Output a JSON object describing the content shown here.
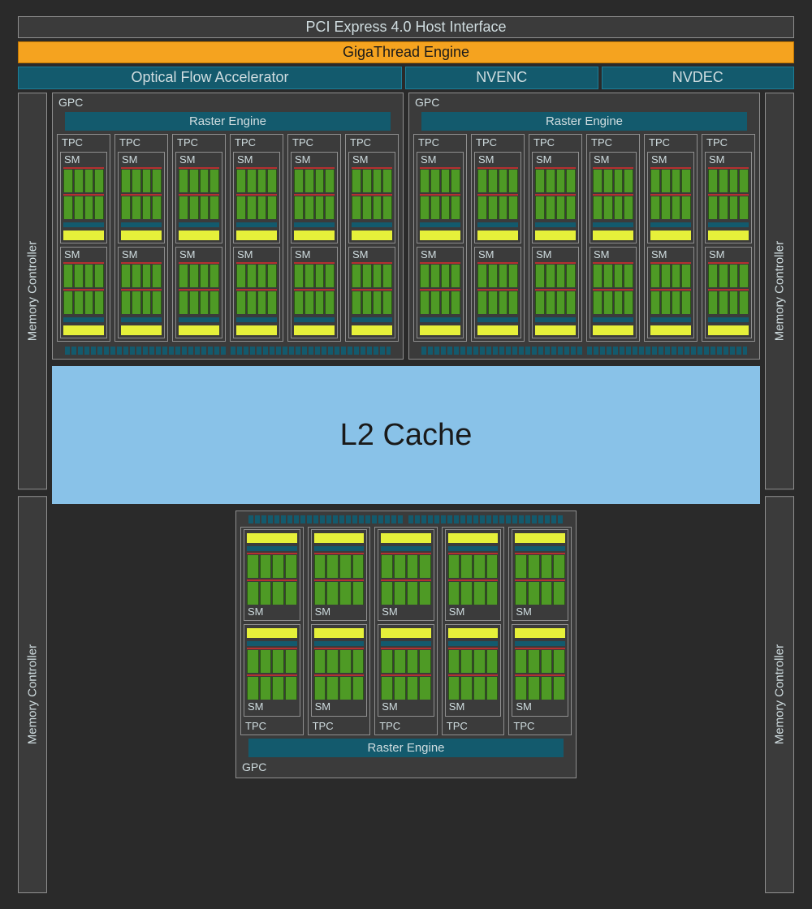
{
  "colors": {
    "page_bg": "#000000",
    "chip_bg": "#2a2a2a",
    "block_bg": "#3b3b3b",
    "border": "#8f8f8f",
    "text": "#d0dde0",
    "text_dark": "#1a1a1a",
    "teal": "#135a6d",
    "teal_border": "#1d7f99",
    "orange": "#f5a31f",
    "orange_border": "#c07500",
    "l2_blue": "#89c2e8",
    "sm_green": "#4e9a25",
    "sm_red": "#b53030",
    "sm_yellow": "#e6f03a"
  },
  "typography": {
    "top_bar_fontsize": 18,
    "label_fontsize": 14,
    "l2_fontsize": 38
  },
  "top": {
    "pcie": "PCI Express 4.0 Host Interface",
    "gigathread": "GigaThread Engine",
    "row3": [
      "Optical Flow Accelerator",
      "NVENC",
      "NVDEC"
    ]
  },
  "memory_controller_label": "Memory Controller",
  "memory_controllers_per_side": 2,
  "l2_label": "L2 Cache",
  "gpc": {
    "label": "GPC",
    "raster_label": "Raster Engine",
    "tpc_label": "TPC",
    "sm_label": "SM",
    "top_count": 2,
    "top_tpcs_per_gpc": 6,
    "bottom_tpcs": 5,
    "sms_per_tpc": 2,
    "core_cols": 4,
    "core_block_rows": 2
  }
}
